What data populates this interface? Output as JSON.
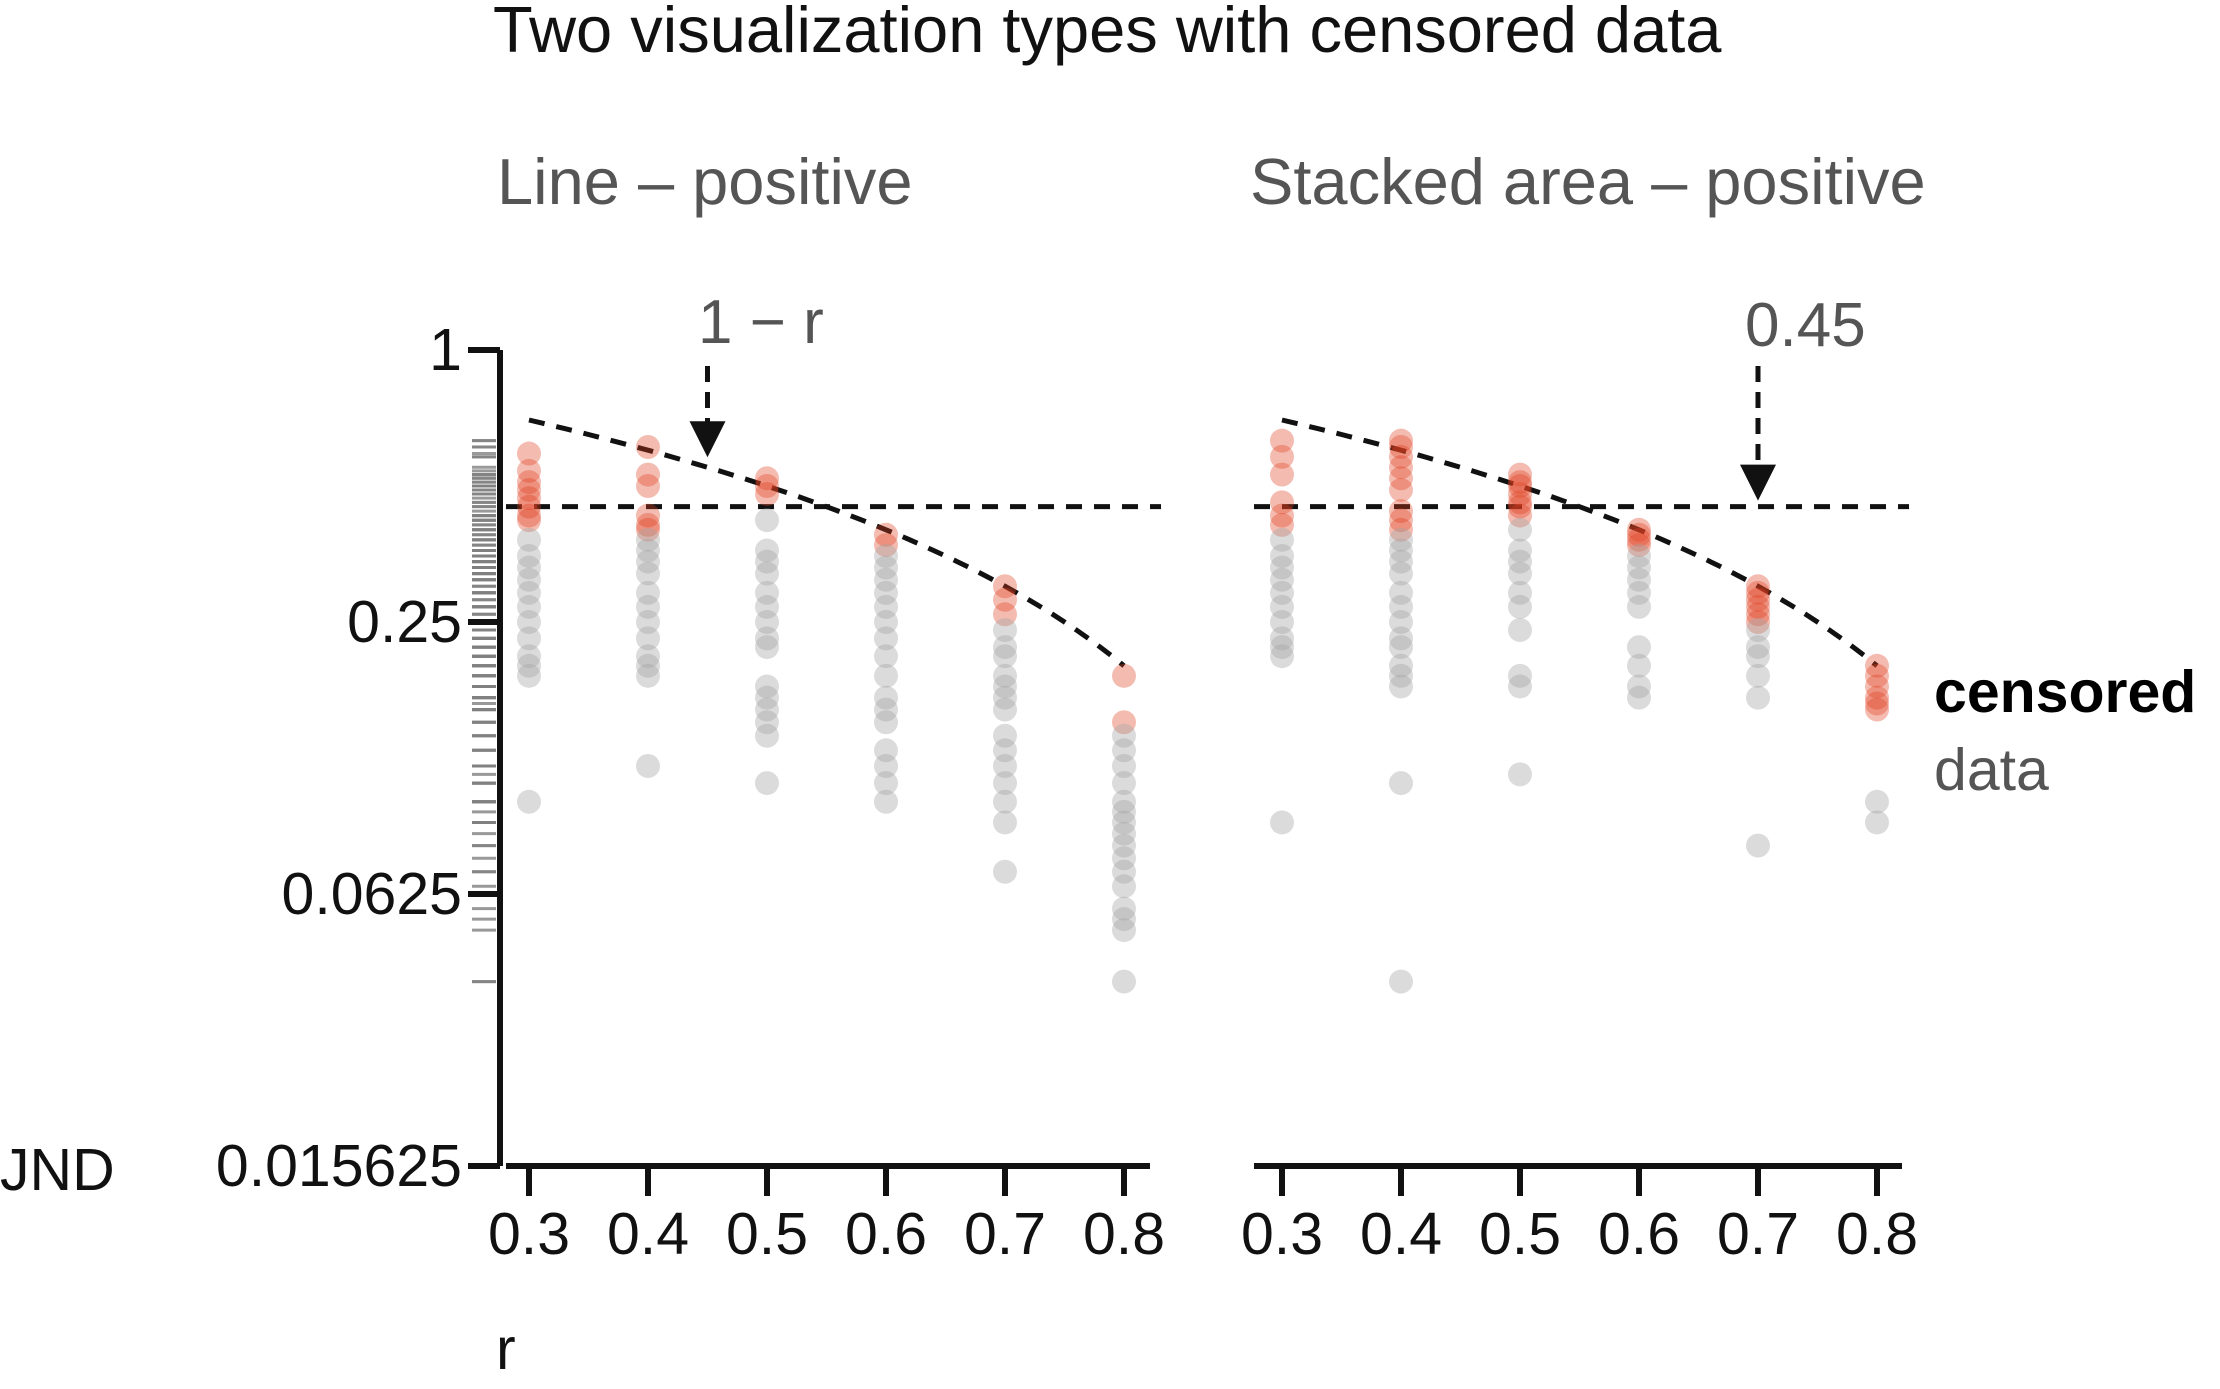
{
  "chart_data": {
    "title": "Two visualization types with censored data",
    "type": "scatter",
    "x_label": "r",
    "y_label": "JND",
    "x_ticks": [
      "0.3",
      "0.4",
      "0.5",
      "0.6",
      "0.7",
      "0.8"
    ],
    "y_ticks": [
      "1",
      "0.25",
      "0.0625",
      "0.015625"
    ],
    "y_scale": "log2",
    "ylim": [
      0.015625,
      1
    ],
    "legend": {
      "placement": "right",
      "censored": "censored",
      "data": "data"
    },
    "colors": {
      "censored": "#e0401f",
      "data": "#a6a6a6",
      "reference": "#111111"
    },
    "panels": [
      {
        "subtitle": "Line – positive",
        "annotation": "1 − r",
        "annotation_x": 0.45,
        "reference_level": 0.45,
        "series": [
          {
            "name": "censored",
            "points": [
              [
                0.3,
                0.59
              ],
              [
                0.3,
                0.54
              ],
              [
                0.3,
                0.51
              ],
              [
                0.3,
                0.49
              ],
              [
                0.3,
                0.47
              ],
              [
                0.3,
                0.45
              ],
              [
                0.3,
                0.43
              ],
              [
                0.3,
                0.42
              ],
              [
                0.4,
                0.61
              ],
              [
                0.4,
                0.53
              ],
              [
                0.4,
                0.5
              ],
              [
                0.4,
                0.43
              ],
              [
                0.4,
                0.41
              ],
              [
                0.4,
                0.4
              ],
              [
                0.5,
                0.52
              ],
              [
                0.5,
                0.5
              ],
              [
                0.5,
                0.48
              ],
              [
                0.6,
                0.39
              ],
              [
                0.6,
                0.37
              ],
              [
                0.7,
                0.3
              ],
              [
                0.7,
                0.28
              ],
              [
                0.7,
                0.26
              ],
              [
                0.8,
                0.19
              ],
              [
                0.8,
                0.15
              ]
            ]
          },
          {
            "name": "data",
            "points": [
              [
                0.3,
                0.38
              ],
              [
                0.3,
                0.35
              ],
              [
                0.3,
                0.33
              ],
              [
                0.3,
                0.31
              ],
              [
                0.3,
                0.29
              ],
              [
                0.3,
                0.27
              ],
              [
                0.3,
                0.25
              ],
              [
                0.3,
                0.23
              ],
              [
                0.3,
                0.21
              ],
              [
                0.3,
                0.2
              ],
              [
                0.3,
                0.19
              ],
              [
                0.3,
                0.1
              ],
              [
                0.4,
                0.38
              ],
              [
                0.4,
                0.36
              ],
              [
                0.4,
                0.34
              ],
              [
                0.4,
                0.32
              ],
              [
                0.4,
                0.29
              ],
              [
                0.4,
                0.27
              ],
              [
                0.4,
                0.25
              ],
              [
                0.4,
                0.23
              ],
              [
                0.4,
                0.21
              ],
              [
                0.4,
                0.2
              ],
              [
                0.4,
                0.19
              ],
              [
                0.4,
                0.12
              ],
              [
                0.5,
                0.42
              ],
              [
                0.5,
                0.36
              ],
              [
                0.5,
                0.34
              ],
              [
                0.5,
                0.32
              ],
              [
                0.5,
                0.29
              ],
              [
                0.5,
                0.27
              ],
              [
                0.5,
                0.25
              ],
              [
                0.5,
                0.23
              ],
              [
                0.5,
                0.22
              ],
              [
                0.5,
                0.18
              ],
              [
                0.5,
                0.17
              ],
              [
                0.5,
                0.16
              ],
              [
                0.5,
                0.15
              ],
              [
                0.5,
                0.14
              ],
              [
                0.5,
                0.11
              ],
              [
                0.6,
                0.35
              ],
              [
                0.6,
                0.33
              ],
              [
                0.6,
                0.31
              ],
              [
                0.6,
                0.29
              ],
              [
                0.6,
                0.27
              ],
              [
                0.6,
                0.25
              ],
              [
                0.6,
                0.23
              ],
              [
                0.6,
                0.21
              ],
              [
                0.6,
                0.19
              ],
              [
                0.6,
                0.17
              ],
              [
                0.6,
                0.16
              ],
              [
                0.6,
                0.15
              ],
              [
                0.6,
                0.13
              ],
              [
                0.6,
                0.12
              ],
              [
                0.6,
                0.11
              ],
              [
                0.6,
                0.1
              ],
              [
                0.7,
                0.24
              ],
              [
                0.7,
                0.22
              ],
              [
                0.7,
                0.21
              ],
              [
                0.7,
                0.19
              ],
              [
                0.7,
                0.18
              ],
              [
                0.7,
                0.17
              ],
              [
                0.7,
                0.16
              ],
              [
                0.7,
                0.14
              ],
              [
                0.7,
                0.13
              ],
              [
                0.7,
                0.12
              ],
              [
                0.7,
                0.11
              ],
              [
                0.7,
                0.1
              ],
              [
                0.7,
                0.09
              ],
              [
                0.7,
                0.07
              ],
              [
                0.8,
                0.14
              ],
              [
                0.8,
                0.13
              ],
              [
                0.8,
                0.12
              ],
              [
                0.8,
                0.11
              ],
              [
                0.8,
                0.1
              ],
              [
                0.8,
                0.095
              ],
              [
                0.8,
                0.09
              ],
              [
                0.8,
                0.085
              ],
              [
                0.8,
                0.08
              ],
              [
                0.8,
                0.075
              ],
              [
                0.8,
                0.07
              ],
              [
                0.8,
                0.065
              ],
              [
                0.8,
                0.058
              ],
              [
                0.8,
                0.055
              ],
              [
                0.8,
                0.052
              ],
              [
                0.8,
                0.04
              ]
            ]
          }
        ]
      },
      {
        "subtitle": "Stacked area – positive",
        "annotation": "0.45",
        "annotation_x": 0.7,
        "reference_level": 0.45,
        "series": [
          {
            "name": "censored",
            "points": [
              [
                0.3,
                0.63
              ],
              [
                0.3,
                0.58
              ],
              [
                0.3,
                0.53
              ],
              [
                0.3,
                0.46
              ],
              [
                0.3,
                0.43
              ],
              [
                0.3,
                0.41
              ],
              [
                0.4,
                0.63
              ],
              [
                0.4,
                0.61
              ],
              [
                0.4,
                0.58
              ],
              [
                0.4,
                0.55
              ],
              [
                0.4,
                0.52
              ],
              [
                0.4,
                0.49
              ],
              [
                0.4,
                0.44
              ],
              [
                0.4,
                0.42
              ],
              [
                0.4,
                0.4
              ],
              [
                0.5,
                0.53
              ],
              [
                0.5,
                0.51
              ],
              [
                0.5,
                0.5
              ],
              [
                0.5,
                0.48
              ],
              [
                0.5,
                0.46
              ],
              [
                0.5,
                0.45
              ],
              [
                0.5,
                0.43
              ],
              [
                0.6,
                0.4
              ],
              [
                0.6,
                0.39
              ],
              [
                0.6,
                0.38
              ],
              [
                0.6,
                0.37
              ],
              [
                0.7,
                0.3
              ],
              [
                0.7,
                0.29
              ],
              [
                0.7,
                0.28
              ],
              [
                0.7,
                0.27
              ],
              [
                0.7,
                0.26
              ],
              [
                0.7,
                0.25
              ],
              [
                0.8,
                0.2
              ],
              [
                0.8,
                0.19
              ],
              [
                0.8,
                0.18
              ],
              [
                0.8,
                0.17
              ],
              [
                0.8,
                0.165
              ],
              [
                0.8,
                0.16
              ]
            ]
          },
          {
            "name": "data",
            "points": [
              [
                0.3,
                0.38
              ],
              [
                0.3,
                0.35
              ],
              [
                0.3,
                0.33
              ],
              [
                0.3,
                0.31
              ],
              [
                0.3,
                0.29
              ],
              [
                0.3,
                0.27
              ],
              [
                0.3,
                0.25
              ],
              [
                0.3,
                0.23
              ],
              [
                0.3,
                0.22
              ],
              [
                0.3,
                0.21
              ],
              [
                0.3,
                0.09
              ],
              [
                0.4,
                0.38
              ],
              [
                0.4,
                0.36
              ],
              [
                0.4,
                0.34
              ],
              [
                0.4,
                0.32
              ],
              [
                0.4,
                0.29
              ],
              [
                0.4,
                0.27
              ],
              [
                0.4,
                0.25
              ],
              [
                0.4,
                0.23
              ],
              [
                0.4,
                0.22
              ],
              [
                0.4,
                0.2
              ],
              [
                0.4,
                0.19
              ],
              [
                0.4,
                0.18
              ],
              [
                0.4,
                0.11
              ],
              [
                0.4,
                0.04
              ],
              [
                0.5,
                0.4
              ],
              [
                0.5,
                0.36
              ],
              [
                0.5,
                0.34
              ],
              [
                0.5,
                0.32
              ],
              [
                0.5,
                0.29
              ],
              [
                0.5,
                0.27
              ],
              [
                0.5,
                0.24
              ],
              [
                0.5,
                0.19
              ],
              [
                0.5,
                0.18
              ],
              [
                0.5,
                0.115
              ],
              [
                0.6,
                0.35
              ],
              [
                0.6,
                0.33
              ],
              [
                0.6,
                0.31
              ],
              [
                0.6,
                0.29
              ],
              [
                0.6,
                0.27
              ],
              [
                0.6,
                0.22
              ],
              [
                0.6,
                0.2
              ],
              [
                0.6,
                0.18
              ],
              [
                0.6,
                0.17
              ],
              [
                0.7,
                0.24
              ],
              [
                0.7,
                0.22
              ],
              [
                0.7,
                0.21
              ],
              [
                0.7,
                0.19
              ],
              [
                0.7,
                0.17
              ],
              [
                0.7,
                0.08
              ],
              [
                0.8,
                0.1
              ],
              [
                0.8,
                0.09
              ]
            ]
          }
        ]
      }
    ]
  }
}
